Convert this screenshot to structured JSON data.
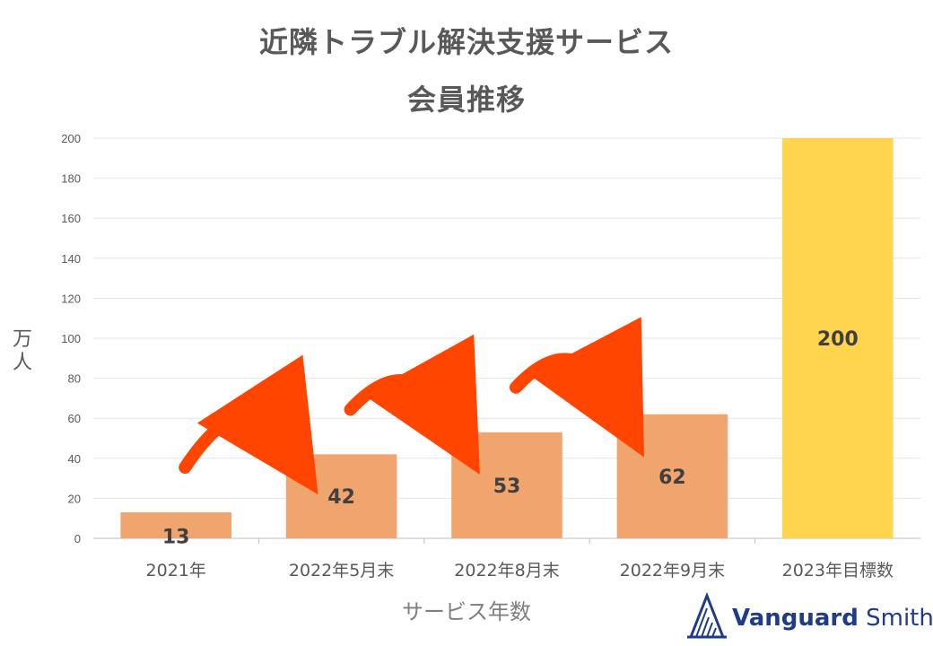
{
  "chart_data": {
    "type": "bar",
    "title": "近隣トラブル解決支援サービス",
    "subtitle": "会員推移",
    "xlabel": "サービス年数",
    "ylabel": "万人",
    "categories": [
      "2021年",
      "2022年5月末",
      "2022年8月末",
      "2022年9月末",
      "2023年目標数"
    ],
    "values": [
      13,
      42,
      53,
      62,
      200
    ],
    "data_labels": [
      "13",
      "42",
      "53",
      "62",
      "200"
    ],
    "ylim": [
      0,
      200
    ],
    "yticks": [
      0,
      20,
      40,
      60,
      80,
      100,
      120,
      140,
      160,
      180,
      200
    ],
    "grid": true,
    "legend": "none",
    "colors": {
      "actual": "#f0a46e",
      "target": "#ffd54f",
      "arrow": "#ff4500",
      "grid": "#e6e6e6",
      "axis_text": "#595959",
      "data_label": "#404040"
    }
  },
  "logo": {
    "brand": "Vanguard",
    "suffix": "Smith"
  }
}
